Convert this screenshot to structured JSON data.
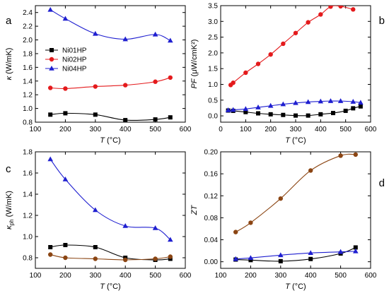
{
  "chart_data": [
    {
      "id": "a",
      "type": "line",
      "panel_letter": "a",
      "xlabel_var": "T",
      "xlabel_unit": "(°C)",
      "ylabel_var": "κ",
      "ylabel_unit": "(W/mK)",
      "xlim": [
        100,
        600
      ],
      "ylim": [
        0.8,
        2.5
      ],
      "xticks": [
        100,
        200,
        300,
        400,
        500,
        600
      ],
      "yticks": [
        0.8,
        1.0,
        1.2,
        1.4,
        1.6,
        1.8,
        2.0,
        2.2,
        2.4
      ],
      "ytick_decimals": 1,
      "legend": {
        "position": "left-middle",
        "entries": [
          "Ni01HP",
          "Ni02HP",
          "Ni04HP"
        ]
      },
      "series": [
        {
          "name": "Ni01HP",
          "marker": "square",
          "color": "#000000",
          "x": [
            150,
            200,
            300,
            400,
            500,
            550
          ],
          "y": [
            0.91,
            0.93,
            0.91,
            0.83,
            0.84,
            0.87
          ]
        },
        {
          "name": "Ni02HP",
          "marker": "circle",
          "color": "#e41a1c",
          "x": [
            150,
            200,
            300,
            400,
            500,
            550
          ],
          "y": [
            1.3,
            1.29,
            1.32,
            1.34,
            1.39,
            1.45
          ]
        },
        {
          "name": "Ni04HP",
          "marker": "triangle",
          "color": "#1f1fd0",
          "x": [
            150,
            200,
            300,
            400,
            500,
            550
          ],
          "y": [
            2.44,
            2.31,
            2.09,
            2.01,
            2.08,
            1.99
          ]
        }
      ]
    },
    {
      "id": "b",
      "type": "line",
      "panel_letter": "b",
      "xlabel_var": "T",
      "xlabel_unit": "(°C)",
      "ylabel_var": "PF",
      "ylabel_unit": "(μW/cmK²)",
      "xlim": [
        0,
        600
      ],
      "ylim": [
        -0.2,
        3.5
      ],
      "xticks": [
        0,
        100,
        200,
        300,
        400,
        500,
        600
      ],
      "yticks": [
        0.0,
        0.5,
        1.0,
        1.5,
        2.0,
        2.5,
        3.0,
        3.5
      ],
      "ytick_decimals": 1,
      "series": [
        {
          "name": "Ni01HP",
          "marker": "square",
          "color": "#000000",
          "x": [
            30,
            50,
            100,
            150,
            200,
            250,
            300,
            350,
            400,
            450,
            500,
            530,
            560
          ],
          "y": [
            0.17,
            0.16,
            0.12,
            0.08,
            0.05,
            0.03,
            0.01,
            0.01,
            0.05,
            0.09,
            0.16,
            0.24,
            0.3
          ]
        },
        {
          "name": "Ni02HP",
          "marker": "circle",
          "color": "#e41a1c",
          "x": [
            40,
            50,
            100,
            150,
            200,
            250,
            300,
            350,
            400,
            440,
            480,
            530
          ],
          "y": [
            0.98,
            1.05,
            1.37,
            1.65,
            1.95,
            2.29,
            2.63,
            2.97,
            3.22,
            3.47,
            3.48,
            3.38
          ]
        },
        {
          "name": "Ni04HP",
          "marker": "triangle",
          "color": "#1f1fd0",
          "x": [
            30,
            50,
            100,
            150,
            200,
            250,
            300,
            350,
            400,
            440,
            480,
            530,
            560
          ],
          "y": [
            0.18,
            0.19,
            0.22,
            0.27,
            0.32,
            0.37,
            0.41,
            0.44,
            0.46,
            0.47,
            0.47,
            0.45,
            0.42
          ]
        }
      ]
    },
    {
      "id": "c",
      "type": "line",
      "panel_letter": "c",
      "xlabel_var": "T",
      "xlabel_unit": "(°C)",
      "ylabel_var": "κ",
      "ylabel_sub": "ph",
      "ylabel_unit": "(W/mK)",
      "xlim": [
        100,
        600
      ],
      "ylim": [
        0.7,
        1.8
      ],
      "xticks": [
        100,
        200,
        300,
        400,
        500,
        600
      ],
      "yticks": [
        0.8,
        1.0,
        1.2,
        1.4,
        1.6,
        1.8
      ],
      "ytick_decimals": 1,
      "series": [
        {
          "name": "Ni01HP",
          "marker": "square",
          "color": "#000000",
          "x": [
            150,
            200,
            300,
            400,
            500,
            550
          ],
          "y": [
            0.9,
            0.92,
            0.9,
            0.8,
            0.78,
            0.79
          ]
        },
        {
          "name": "Ni02HP",
          "marker": "circle",
          "color": "#8b4513",
          "x": [
            150,
            200,
            300,
            400,
            500,
            550
          ],
          "y": [
            0.83,
            0.8,
            0.79,
            0.78,
            0.79,
            0.81
          ]
        },
        {
          "name": "Ni04HP",
          "marker": "triangle",
          "color": "#1f1fd0",
          "x": [
            150,
            200,
            300,
            400,
            500,
            550
          ],
          "y": [
            1.73,
            1.54,
            1.25,
            1.1,
            1.08,
            0.97
          ]
        }
      ]
    },
    {
      "id": "d",
      "type": "line",
      "panel_letter": "d",
      "xlabel_var": "T",
      "xlabel_unit": "(°C)",
      "ylabel_var": "ZT",
      "ylabel_unit": "",
      "xlim": [
        100,
        600
      ],
      "ylim": [
        -0.012,
        0.2
      ],
      "xticks": [
        100,
        200,
        300,
        400,
        500,
        600
      ],
      "yticks": [
        0.0,
        0.04,
        0.08,
        0.12,
        0.16,
        0.2
      ],
      "ytick_decimals": 2,
      "series": [
        {
          "name": "Ni01HP",
          "marker": "square",
          "color": "#000000",
          "x": [
            150,
            200,
            300,
            400,
            500,
            550
          ],
          "y": [
            0.004,
            0.003,
            0.001,
            0.005,
            0.015,
            0.026
          ]
        },
        {
          "name": "Ni02HP",
          "marker": "circle",
          "color": "#8b4513",
          "x": [
            150,
            200,
            300,
            400,
            500,
            550
          ],
          "y": [
            0.054,
            0.071,
            0.115,
            0.166,
            0.193,
            0.195
          ]
        },
        {
          "name": "Ni04HP",
          "marker": "triangle",
          "color": "#1f1fd0",
          "x": [
            150,
            200,
            300,
            400,
            500,
            550
          ],
          "y": [
            0.005,
            0.007,
            0.012,
            0.016,
            0.018,
            0.019
          ]
        }
      ]
    }
  ]
}
